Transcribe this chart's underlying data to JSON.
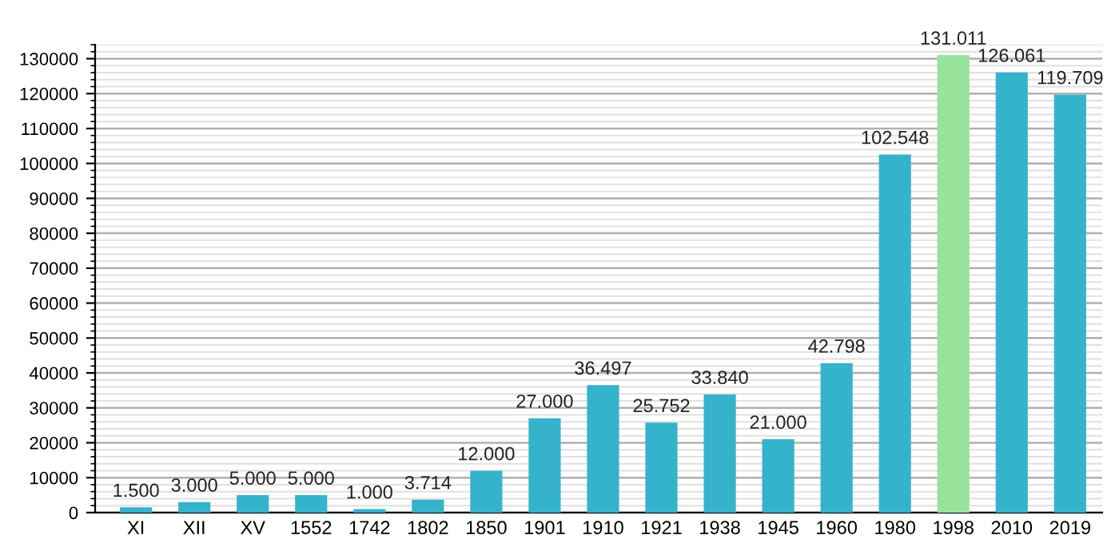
{
  "chart_data": {
    "type": "bar",
    "categories": [
      "XI",
      "XII",
      "XV",
      "1552",
      "1742",
      "1802",
      "1850",
      "1901",
      "1910",
      "1921",
      "1938",
      "1945",
      "1960",
      "1980",
      "1998",
      "2010",
      "2019"
    ],
    "values": [
      1500,
      3000,
      5000,
      5000,
      1000,
      3714,
      12000,
      27000,
      36497,
      25752,
      33840,
      21000,
      42798,
      102548,
      131011,
      126061,
      119709
    ],
    "value_labels": [
      "1.500",
      "3.000",
      "5.000",
      "5.000",
      "1.000",
      "3.714",
      "12.000",
      "27.000",
      "36.497",
      "25.752",
      "33.840",
      "21.000",
      "42.798",
      "102.548",
      "131.011",
      "126.061",
      "119.709"
    ],
    "colors": [
      "#36b3cc",
      "#36b3cc",
      "#36b3cc",
      "#36b3cc",
      "#36b3cc",
      "#36b3cc",
      "#36b3cc",
      "#36b3cc",
      "#36b3cc",
      "#36b3cc",
      "#36b3cc",
      "#36b3cc",
      "#36b3cc",
      "#36b3cc",
      "#98e39a",
      "#36b3cc",
      "#36b3cc"
    ],
    "ylim": [
      0,
      134000
    ],
    "yticks": [
      0,
      {
        "value": 2000,
        "label": null
      },
      {
        "value": 4000,
        "label": null
      },
      {
        "value": 6000,
        "label": null
      },
      {
        "value": 8000,
        "label": null
      },
      10000,
      {
        "value": 12000,
        "label": null
      },
      {
        "value": 14000,
        "label": null
      },
      {
        "value": 16000,
        "label": null
      },
      {
        "value": 18000,
        "label": null
      },
      20000,
      {
        "value": 22000,
        "label": null
      },
      {
        "value": 24000,
        "label": null
      },
      {
        "value": 26000,
        "label": null
      },
      {
        "value": 28000,
        "label": null
      },
      30000,
      {
        "value": 32000,
        "label": null
      },
      {
        "value": 34000,
        "label": null
      },
      {
        "value": 36000,
        "label": null
      },
      {
        "value": 38000,
        "label": null
      },
      40000,
      {
        "value": 42000,
        "label": null
      },
      {
        "value": 44000,
        "label": null
      },
      {
        "value": 46000,
        "label": null
      },
      {
        "value": 48000,
        "label": null
      },
      50000,
      {
        "value": 52000,
        "label": null
      },
      {
        "value": 54000,
        "label": null
      },
      {
        "value": 56000,
        "label": null
      },
      {
        "value": 58000,
        "label": null
      },
      60000,
      {
        "value": 62000,
        "label": null
      },
      {
        "value": 64000,
        "label": null
      },
      {
        "value": 66000,
        "label": null
      },
      {
        "value": 68000,
        "label": null
      },
      70000,
      {
        "value": 72000,
        "label": null
      },
      {
        "value": 74000,
        "label": null
      },
      {
        "value": 76000,
        "label": null
      },
      {
        "value": 78000,
        "label": null
      },
      80000,
      {
        "value": 82000,
        "label": null
      },
      {
        "value": 84000,
        "label": null
      },
      {
        "value": 86000,
        "label": null
      },
      {
        "value": 88000,
        "label": null
      },
      90000,
      {
        "value": 92000,
        "label": null
      },
      {
        "value": 94000,
        "label": null
      },
      {
        "value": 96000,
        "label": null
      },
      {
        "value": 98000,
        "label": null
      },
      100000,
      {
        "value": 102000,
        "label": null
      },
      {
        "value": 104000,
        "label": null
      },
      {
        "value": 106000,
        "label": null
      },
      {
        "value": 108000,
        "label": null
      },
      110000,
      {
        "value": 112000,
        "label": null
      },
      {
        "value": 114000,
        "label": null
      },
      {
        "value": 116000,
        "label": null
      },
      {
        "value": 118000,
        "label": null
      },
      120000,
      {
        "value": 122000,
        "label": null
      },
      {
        "value": 124000,
        "label": null
      },
      {
        "value": 126000,
        "label": null
      },
      {
        "value": 128000,
        "label": null
      },
      130000,
      {
        "value": 132000,
        "label": null
      },
      {
        "value": 134000,
        "label": null
      }
    ],
    "grid": true
  }
}
